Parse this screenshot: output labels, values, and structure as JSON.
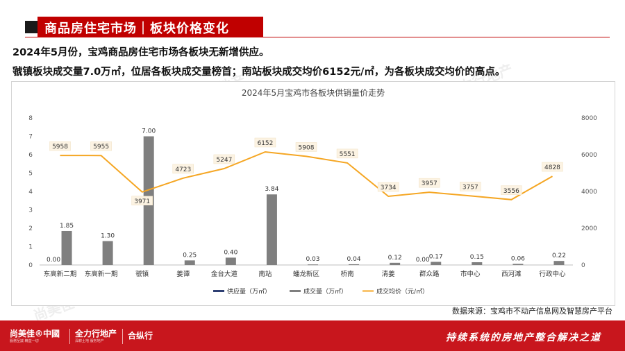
{
  "header": {
    "title": "商品房住宅市场｜板块价格变化"
  },
  "summary": {
    "line1": "2024年5月份，宝鸡商品房住宅市场各板块无新增供应。",
    "line2": "虢镇板块成交量7.0万㎡，位居各板块成交量榜首；南站板块成交均价6152元/㎡，为各板块成交均价的高点。"
  },
  "colors": {
    "brand_red": "#c00000",
    "supply": "#2e3f73",
    "deal": "#7f7f7f",
    "price": "#f5a623"
  },
  "chart_data": {
    "type": "bar",
    "title": "2024年5月宝鸡市各板块供销量价走势",
    "categories": [
      "东高新二期",
      "东高新一期",
      "虢镇",
      "姜谭",
      "金台大道",
      "南站",
      "蟠龙新区",
      "桥南",
      "清姜",
      "群众路",
      "市中心",
      "西河滩",
      "行政中心"
    ],
    "series": [
      {
        "name": "供应量（万㎡）",
        "type": "bar",
        "axis": "left",
        "values": [
          0,
          0,
          0,
          0,
          0,
          0,
          0,
          0,
          0,
          0,
          0,
          0,
          0
        ],
        "labels": [
          "0.00",
          "",
          "",
          "",
          "",
          "",
          "",
          "",
          "",
          "0.00",
          "",
          "",
          ""
        ]
      },
      {
        "name": "成交量（万㎡）",
        "type": "bar",
        "axis": "left",
        "values": [
          1.85,
          1.3,
          7.0,
          0.25,
          0.4,
          3.84,
          0.03,
          0.04,
          0.12,
          0.17,
          0.15,
          0.06,
          0.22
        ],
        "labels": [
          "1.85",
          "1.30",
          "7.00",
          "0.25",
          "0.40",
          "3.84",
          "0.03",
          "0.04",
          "0.12",
          "0.17",
          "0.15",
          "0.06",
          "0.22"
        ]
      },
      {
        "name": "成交均价（元/㎡）",
        "type": "line",
        "axis": "right",
        "values": [
          5958,
          5955,
          3971,
          4723,
          5247,
          6152,
          5908,
          5551,
          3734,
          3957,
          3757,
          3556,
          4828
        ]
      }
    ],
    "ylim_left": [
      0,
      8
    ],
    "yticks_left": [
      "0",
      "1",
      "2",
      "3",
      "4",
      "5",
      "6",
      "7",
      "8"
    ],
    "ylim_right": [
      0,
      8000
    ],
    "yticks_right": [
      "0",
      "2000",
      "4000",
      "6000",
      "8000"
    ],
    "grid": false,
    "legend_position": "bottom"
  },
  "source": "数据来源：宝鸡市不动产信息网及智慧房产平台",
  "footer": {
    "logo1": "尚美佳®中國",
    "logo1_sub": "服務至誠  精益一切",
    "logo2": "全力行地产",
    "logo2_sub": "深耕土地  服务地产",
    "logo3": "合纵行",
    "slogan": "持续系统的房地产整合解决之道"
  },
  "watermarks": [
    "尚美佳®中國",
    "全力行地产",
    "合纵行"
  ]
}
